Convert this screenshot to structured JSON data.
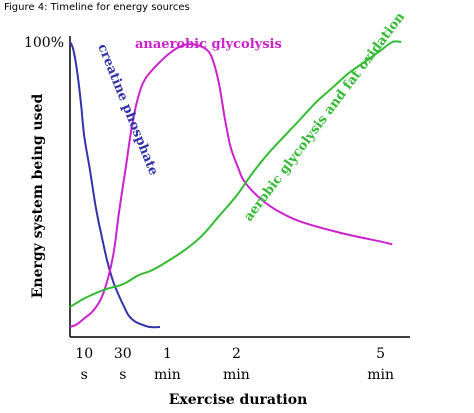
{
  "caption": "Figure 4: Timeline for energy sources",
  "chart_data": {
    "type": "line",
    "title": "",
    "xlabel": "Exercise duration",
    "ylabel": "Energy system being used",
    "y_tick_label": "100%",
    "x_ticks": [
      {
        "value": 10,
        "label": [
          "10",
          "s"
        ]
      },
      {
        "value": 30,
        "label": [
          "30",
          "s"
        ]
      },
      {
        "value": 60,
        "label": [
          "1",
          "min"
        ]
      },
      {
        "value": 120,
        "label": [
          "2",
          "min"
        ]
      },
      {
        "value": 300,
        "label": [
          "5",
          "min"
        ]
      }
    ],
    "x_piecewise": [
      [
        0,
        0
      ],
      [
        10,
        14
      ],
      [
        30,
        52
      ],
      [
        60,
        96
      ],
      [
        120,
        164
      ],
      [
        300,
        306
      ],
      [
        350,
        335
      ]
    ],
    "xlim": [
      0,
      350
    ],
    "ylim": [
      0,
      100
    ],
    "series": [
      {
        "name": "creatine phosphate",
        "color": "#3333aa",
        "points": [
          [
            0,
            100
          ],
          [
            2,
            98
          ],
          [
            4,
            93
          ],
          [
            6,
            86
          ],
          [
            8,
            77
          ],
          [
            10,
            67
          ],
          [
            13,
            55
          ],
          [
            16,
            42
          ],
          [
            19,
            32
          ],
          [
            22,
            23
          ],
          [
            25,
            16
          ],
          [
            28,
            11
          ],
          [
            31,
            7
          ],
          [
            34,
            4
          ],
          [
            38,
            2
          ],
          [
            42,
            1
          ],
          [
            48,
            0
          ],
          [
            55,
            0
          ]
        ]
      },
      {
        "name": "anaerobic glycolysis",
        "color": "#cc22cc",
        "points": [
          [
            0,
            0
          ],
          [
            5,
            1
          ],
          [
            10,
            3
          ],
          [
            15,
            6
          ],
          [
            20,
            12
          ],
          [
            25,
            25
          ],
          [
            28,
            40
          ],
          [
            32,
            56
          ],
          [
            36,
            70
          ],
          [
            40,
            80
          ],
          [
            45,
            87
          ],
          [
            55,
            93
          ],
          [
            65,
            97
          ],
          [
            75,
            99
          ],
          [
            85,
            99
          ],
          [
            95,
            97
          ],
          [
            100,
            93
          ],
          [
            105,
            85
          ],
          [
            110,
            73
          ],
          [
            115,
            63
          ],
          [
            122,
            56
          ],
          [
            130,
            51
          ],
          [
            150,
            45
          ],
          [
            170,
            41
          ],
          [
            200,
            37
          ],
          [
            250,
            33
          ],
          [
            300,
            30
          ],
          [
            320,
            29
          ]
        ]
      },
      {
        "name": "aerobic glycolysis and fat oxidation",
        "color": "#33bb33",
        "points": [
          [
            0,
            7
          ],
          [
            10,
            10
          ],
          [
            20,
            13
          ],
          [
            30,
            15
          ],
          [
            40,
            18
          ],
          [
            50,
            20
          ],
          [
            60,
            23
          ],
          [
            75,
            27
          ],
          [
            90,
            32
          ],
          [
            105,
            39
          ],
          [
            120,
            46
          ],
          [
            140,
            54
          ],
          [
            160,
            61
          ],
          [
            180,
            67
          ],
          [
            200,
            73
          ],
          [
            220,
            79
          ],
          [
            240,
            84
          ],
          [
            260,
            89
          ],
          [
            280,
            93
          ],
          [
            300,
            97
          ],
          [
            320,
            100
          ],
          [
            335,
            100
          ]
        ]
      }
    ],
    "annotations": [
      {
        "text": "anaerobic glycolysis",
        "color": "#cc22cc"
      },
      {
        "text": "creatine phosphate",
        "color": "#3333aa"
      },
      {
        "text": "aerobic glycolysis and fat oxidation",
        "color": "#33bb33"
      }
    ],
    "grid": false,
    "legend": "none"
  }
}
